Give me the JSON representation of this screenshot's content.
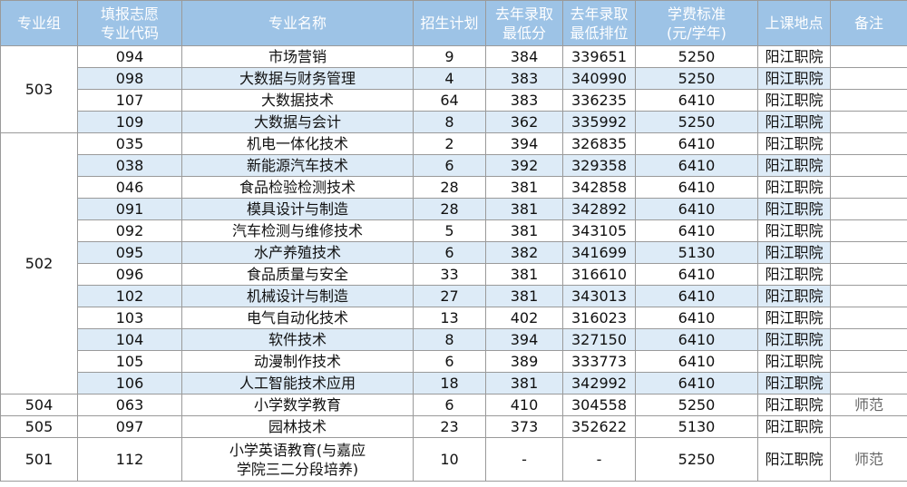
{
  "table": {
    "header": [
      [
        "专业组"
      ],
      [
        "填报志愿",
        "专业代码"
      ],
      [
        "专业名称"
      ],
      [
        "招生计划"
      ],
      [
        "去年录取",
        "最低分"
      ],
      [
        "去年录取",
        "最低排位"
      ],
      [
        "学费标准",
        "(元/学年)"
      ],
      [
        "上课地点"
      ],
      [
        "备注"
      ]
    ],
    "groups": [
      {
        "group": "503",
        "rows": [
          {
            "code": "094",
            "name": [
              "市场营销"
            ],
            "plan": 9,
            "min_score": 384,
            "min_rank": 339651,
            "fee": 5250,
            "location": "阳江职院"
          },
          {
            "code": "098",
            "name": [
              "大数据与财务管理"
            ],
            "plan": 4,
            "min_score": 383,
            "min_rank": 340990,
            "fee": 5250,
            "location": "阳江职院"
          },
          {
            "code": "107",
            "name": [
              "大数据技术"
            ],
            "plan": 64,
            "min_score": 383,
            "min_rank": 336235,
            "fee": 6410,
            "location": "阳江职院"
          },
          {
            "code": "109",
            "name": [
              "大数据与会计"
            ],
            "plan": 8,
            "min_score": 362,
            "min_rank": 335992,
            "fee": 5250,
            "location": "阳江职院"
          }
        ]
      },
      {
        "group": "502",
        "rows": [
          {
            "code": "035",
            "name": [
              "机电一体化技术"
            ],
            "plan": 2,
            "min_score": 394,
            "min_rank": 326835,
            "fee": 6410,
            "location": "阳江职院"
          },
          {
            "code": "038",
            "name": [
              "新能源汽车技术"
            ],
            "plan": 6,
            "min_score": 392,
            "min_rank": 329358,
            "fee": 6410,
            "location": "阳江职院"
          },
          {
            "code": "046",
            "name": [
              "食品检验检测技术"
            ],
            "plan": 28,
            "min_score": 381,
            "min_rank": 342858,
            "fee": 6410,
            "location": "阳江职院"
          },
          {
            "code": "091",
            "name": [
              "模具设计与制造"
            ],
            "plan": 28,
            "min_score": 381,
            "min_rank": 342892,
            "fee": 6410,
            "location": "阳江职院"
          },
          {
            "code": "092",
            "name": [
              "汽车检测与维修技术"
            ],
            "plan": 5,
            "min_score": 381,
            "min_rank": 343105,
            "fee": 6410,
            "location": "阳江职院"
          },
          {
            "code": "095",
            "name": [
              "水产养殖技术"
            ],
            "plan": 6,
            "min_score": 382,
            "min_rank": 341699,
            "fee": 5130,
            "location": "阳江职院"
          },
          {
            "code": "096",
            "name": [
              "食品质量与安全"
            ],
            "plan": 33,
            "min_score": 381,
            "min_rank": 316610,
            "fee": 6410,
            "location": "阳江职院"
          },
          {
            "code": "102",
            "name": [
              "机械设计与制造"
            ],
            "plan": 27,
            "min_score": 381,
            "min_rank": 343013,
            "fee": 6410,
            "location": "阳江职院"
          },
          {
            "code": "103",
            "name": [
              "电气自动化技术"
            ],
            "plan": 13,
            "min_score": 402,
            "min_rank": 316023,
            "fee": 6410,
            "location": "阳江职院"
          },
          {
            "code": "104",
            "name": [
              "软件技术"
            ],
            "plan": 8,
            "min_score": 394,
            "min_rank": 327150,
            "fee": 6410,
            "location": "阳江职院"
          },
          {
            "code": "105",
            "name": [
              "动漫制作技术"
            ],
            "plan": 6,
            "min_score": 389,
            "min_rank": 333773,
            "fee": 6410,
            "location": "阳江职院"
          },
          {
            "code": "106",
            "name": [
              "人工智能技术应用"
            ],
            "plan": 18,
            "min_score": 381,
            "min_rank": 342992,
            "fee": 6410,
            "location": "阳江职院"
          }
        ]
      },
      {
        "group": "504",
        "rows": [
          {
            "code": "063",
            "name": [
              "小学数学教育"
            ],
            "plan": 6,
            "min_score": 410,
            "min_rank": 304558,
            "fee": 5250,
            "location": "阳江职院",
            "note": "师范"
          }
        ]
      },
      {
        "group": "505",
        "rows": [
          {
            "code": "097",
            "name": [
              "园林技术"
            ],
            "plan": 23,
            "min_score": 373,
            "min_rank": 352622,
            "fee": 5130,
            "location": "阳江职院"
          }
        ]
      },
      {
        "group": "501",
        "rows": [
          {
            "code": "112",
            "name": [
              "小学英语教育(与嘉应",
              "学院三二分段培养)"
            ],
            "plan": 10,
            "min_score": "-",
            "min_rank": "-",
            "fee": 5250,
            "location": "阳江职院",
            "note": "师范"
          }
        ]
      }
    ]
  }
}
